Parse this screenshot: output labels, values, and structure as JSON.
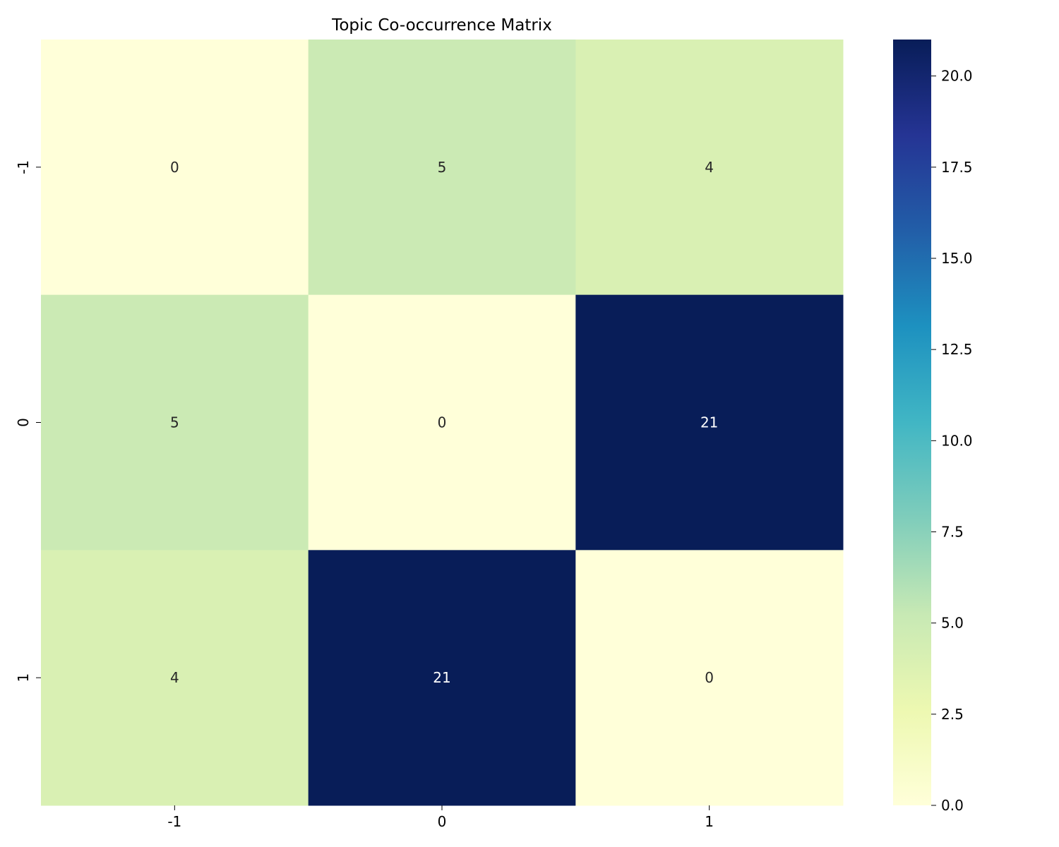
{
  "chart_data": {
    "type": "heatmap",
    "title": "Topic Co-occurrence Matrix",
    "xlabel": "",
    "ylabel": "",
    "x_categories": [
      "-1",
      "0",
      "1"
    ],
    "y_categories": [
      "-1",
      "0",
      "1"
    ],
    "values": [
      [
        0,
        5,
        4
      ],
      [
        5,
        0,
        21
      ],
      [
        4,
        21,
        0
      ]
    ],
    "colorscale": "YlGnBu",
    "color_range": [
      0,
      21
    ],
    "colorbar_ticks": [
      "0.0",
      "2.5",
      "5.0",
      "7.5",
      "10.0",
      "12.5",
      "15.0",
      "17.5",
      "20.0"
    ],
    "annotations": true,
    "grid": false,
    "colors": {
      "light_text": "#ffffff",
      "dark_text": "#262626"
    }
  }
}
